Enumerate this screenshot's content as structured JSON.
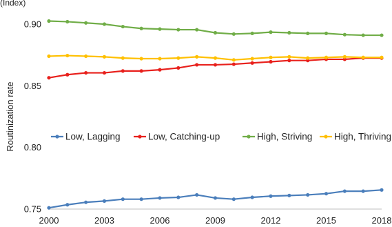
{
  "corner_fragment": "(Index)",
  "chart_data": {
    "type": "line",
    "ylabel": "Routinization rate",
    "xlabel": "",
    "ylim": [
      0.75,
      0.9
    ],
    "yticks": [
      0.75,
      0.8,
      0.85,
      0.9
    ],
    "ytick_labels": [
      "0.75",
      "0.80",
      "0.85",
      "0.90"
    ],
    "xlim": [
      2000,
      2018
    ],
    "xticks": [
      2000,
      2003,
      2006,
      2009,
      2012,
      2015,
      2018
    ],
    "xtick_labels": [
      "2000",
      "2003",
      "2006",
      "2009",
      "2012",
      "2015",
      "2018"
    ],
    "grid": false,
    "legend_position": "middle",
    "x": [
      2000,
      2001,
      2002,
      2003,
      2004,
      2005,
      2006,
      2007,
      2008,
      2009,
      2010,
      2011,
      2012,
      2013,
      2014,
      2015,
      2016,
      2017,
      2018
    ],
    "series": [
      {
        "name": "Low, Lagging",
        "color": "#4a7ebb",
        "values": [
          0.751,
          0.7535,
          0.7555,
          0.7565,
          0.758,
          0.758,
          0.759,
          0.7595,
          0.7615,
          0.759,
          0.758,
          0.7595,
          0.7605,
          0.761,
          0.7615,
          0.7625,
          0.7645,
          0.7645,
          0.7655
        ]
      },
      {
        "name": "Low, Catching-up",
        "color": "#e8201c",
        "values": [
          0.8565,
          0.859,
          0.8605,
          0.8605,
          0.862,
          0.862,
          0.863,
          0.8645,
          0.867,
          0.867,
          0.8675,
          0.8685,
          0.8695,
          0.8705,
          0.8705,
          0.8715,
          0.8715,
          0.8725,
          0.8725
        ]
      },
      {
        "name": "High, Striving",
        "color": "#70ad47",
        "values": [
          0.9025,
          0.902,
          0.901,
          0.9,
          0.898,
          0.8965,
          0.896,
          0.8955,
          0.8955,
          0.893,
          0.892,
          0.8925,
          0.8935,
          0.893,
          0.8925,
          0.8925,
          0.8915,
          0.891,
          0.891
        ]
      },
      {
        "name": "High, Thriving",
        "color": "#ffc000",
        "values": [
          0.874,
          0.8745,
          0.874,
          0.8735,
          0.8725,
          0.872,
          0.872,
          0.8725,
          0.8735,
          0.8725,
          0.871,
          0.872,
          0.873,
          0.8735,
          0.8725,
          0.873,
          0.8735,
          0.873,
          0.873
        ]
      }
    ]
  }
}
